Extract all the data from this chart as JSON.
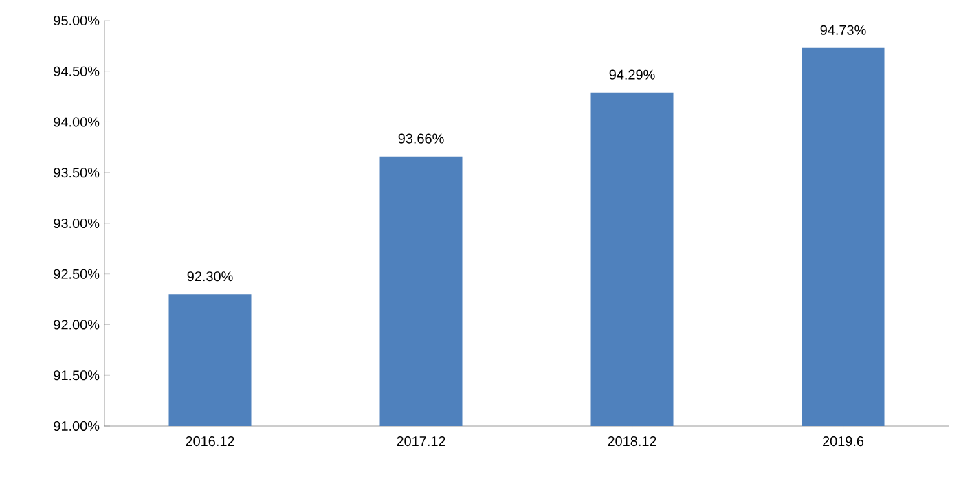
{
  "chart_data": {
    "type": "bar",
    "categories": [
      "2016.12",
      "2017.12",
      "2018.12",
      "2019.6"
    ],
    "values": [
      92.3,
      93.66,
      94.29,
      94.73
    ],
    "value_labels": [
      "92.30%",
      "93.66%",
      "94.29%",
      "94.73%"
    ],
    "color": "#4f81bd",
    "ylim": [
      91,
      95
    ],
    "yticks": [
      {
        "value": 91,
        "label": "91.00%"
      },
      {
        "value": 91.5,
        "label": "91.50%"
      },
      {
        "value": 92,
        "label": "92.00%"
      },
      {
        "value": 92.5,
        "label": "92.50%"
      },
      {
        "value": 93,
        "label": "93.00%"
      },
      {
        "value": 93.5,
        "label": "93.50%"
      },
      {
        "value": 94,
        "label": "94.00%"
      },
      {
        "value": 94.5,
        "label": "94.50%"
      },
      {
        "value": 95,
        "label": "95.00%"
      }
    ],
    "grid": false
  }
}
